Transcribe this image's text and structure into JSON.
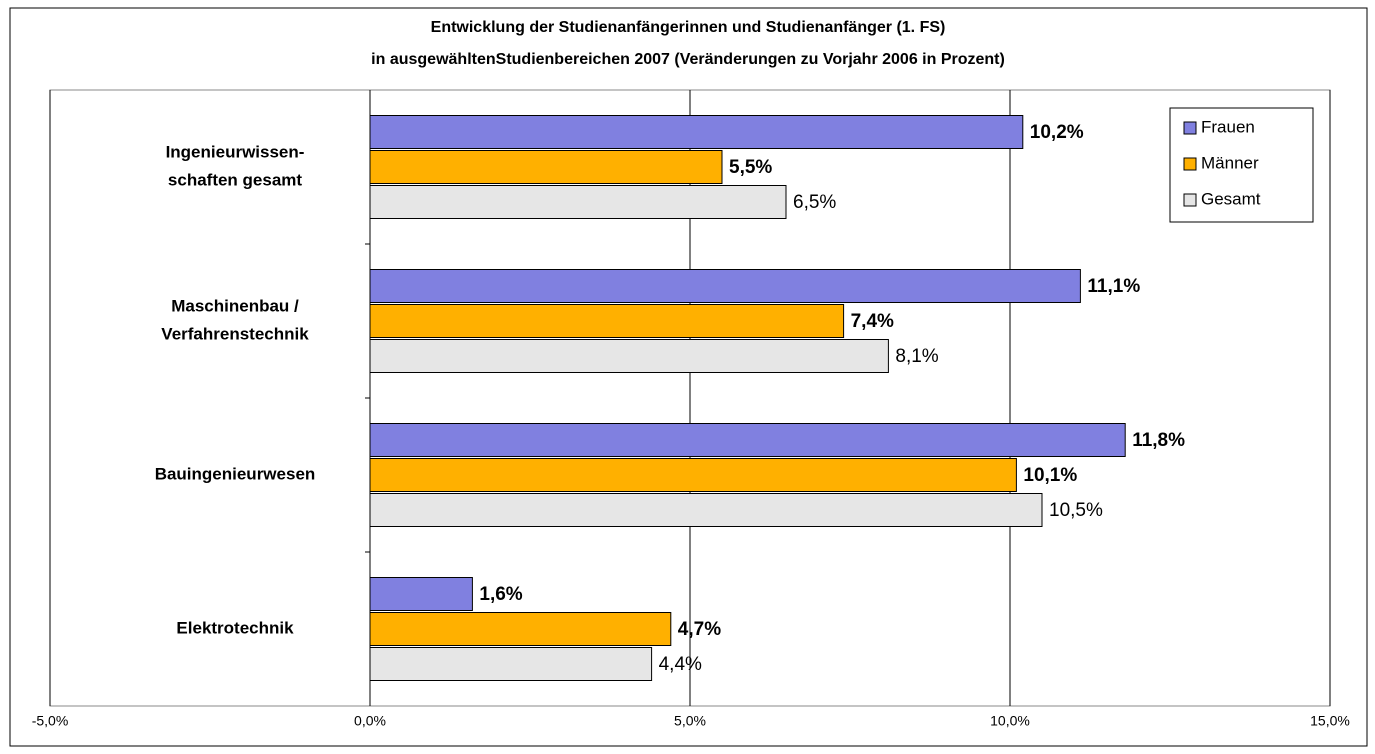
{
  "chart_data": {
    "type": "hbar",
    "title": [
      "Entwicklung der Studienanfängerinnen und Studienanfänger (1. FS)",
      "in ausgewähltenStudienbereichen 2007 (Veränderungen zu Vorjahr 2006 in Prozent)"
    ],
    "categories": [
      [
        "Ingenieurwissen-",
        "schaften gesamt"
      ],
      [
        "Maschinenbau /",
        "Verfahrenstechnik"
      ],
      [
        "Bauingenieurwesen"
      ],
      [
        "Elektrotechnik"
      ]
    ],
    "series": [
      {
        "name": "Frauen",
        "color": "#8080e0",
        "values": [
          10.2,
          11.1,
          11.8,
          1.6
        ],
        "value_labels": [
          "10,2%",
          "11,1%",
          "11,8%",
          "1,6%"
        ]
      },
      {
        "name": "Männer",
        "color": "#ffb000",
        "values": [
          5.5,
          7.4,
          10.1,
          4.7
        ],
        "value_labels": [
          "5,5%",
          "7,4%",
          "10,1%",
          "4,7%"
        ]
      },
      {
        "name": "Gesamt",
        "color": "#e6e6e6",
        "values": [
          6.5,
          8.1,
          10.5,
          4.4
        ],
        "value_labels": [
          "6,5%",
          "8,1%",
          "10,5%",
          "4,4%"
        ]
      }
    ],
    "xlim": [
      -5,
      15
    ],
    "xticks": [
      {
        "value": -5,
        "label": "-5,0%"
      },
      {
        "value": 0,
        "label": "0,0%"
      },
      {
        "value": 5,
        "label": "5,0%"
      },
      {
        "value": 10,
        "label": "10,0%"
      },
      {
        "value": 15,
        "label": "15,0%"
      }
    ],
    "grid": true,
    "legend": "top-right"
  }
}
